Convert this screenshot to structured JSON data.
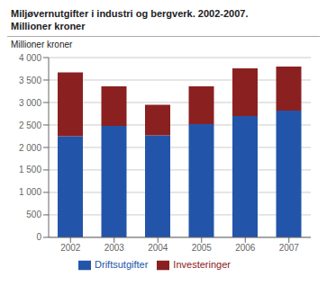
{
  "chart_data": {
    "type": "bar",
    "title": "Miljøvernutgifter i industri og bergverk. 2002-2007.",
    "subtitle": "Millioner kroner",
    "y_label": "Millioner kroner",
    "categories": [
      "2002",
      "2003",
      "2004",
      "2005",
      "2006",
      "2007"
    ],
    "series": [
      {
        "name": "Driftsutgifter",
        "color": "#2255aa",
        "values": [
          2250,
          2480,
          2270,
          2520,
          2700,
          2820
        ]
      },
      {
        "name": "Investeringer",
        "color": "#8b2020",
        "values": [
          1420,
          880,
          680,
          840,
          1060,
          980
        ]
      }
    ],
    "stacked": true,
    "ylim": [
      0,
      4000
    ],
    "yticks": [
      0,
      500,
      {
        "value": 1000,
        "label": "1 000"
      },
      {
        "value": 1500,
        "label": "1 500"
      },
      {
        "value": 2000,
        "label": "2 000"
      },
      {
        "value": 2500,
        "label": "2 500"
      },
      {
        "value": 3000,
        "label": "3 000"
      },
      {
        "value": 3500,
        "label": "3 500"
      },
      {
        "value": 4000,
        "label": "4 000"
      }
    ],
    "grid": true,
    "legend": "bottom"
  }
}
